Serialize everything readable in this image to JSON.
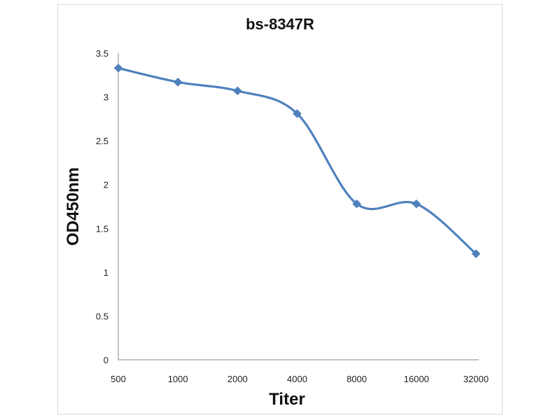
{
  "chart_data": {
    "type": "line",
    "title": "bs-8347R",
    "xlabel": "Titer",
    "ylabel": "OD450nm",
    "categories": [
      "500",
      "1000",
      "2000",
      "4000",
      "8000",
      "16000",
      "32000"
    ],
    "series": [
      {
        "name": "bs-8347R",
        "values": [
          3.33,
          3.17,
          3.07,
          2.81,
          1.78,
          1.78,
          1.21
        ],
        "color": "#4f81bd",
        "marker": "diamond",
        "smooth": true
      }
    ],
    "ylim": [
      0,
      3.5
    ],
    "yticks": [
      0,
      0.5,
      1,
      1.5,
      2,
      2.5,
      3,
      3.5
    ],
    "ytick_labels": [
      "0",
      "0.5",
      "1",
      "1.5",
      "2",
      "2.5",
      "3",
      "3.5"
    ],
    "grid": false,
    "legend": "none"
  }
}
